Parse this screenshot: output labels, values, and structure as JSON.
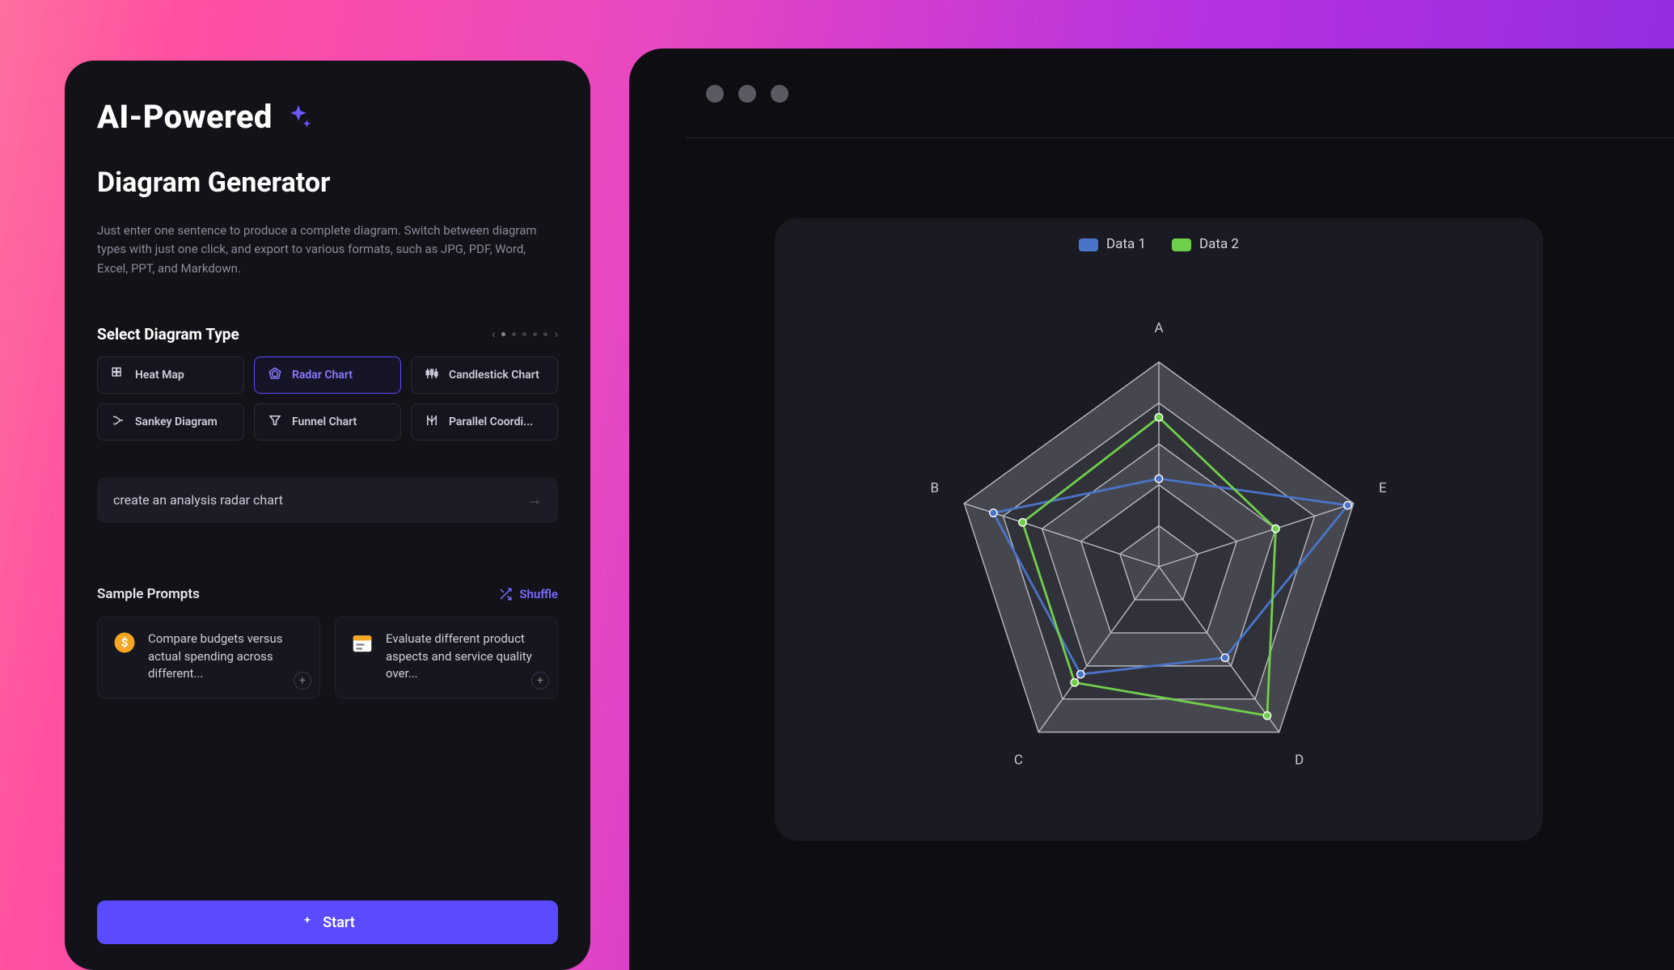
{
  "header": {
    "line1": "AI-Powered",
    "line2": "Diagram Generator",
    "description": "Just enter one sentence to produce a complete diagram. Switch between diagram types with just one click, and export to various formats, such as JPG, PDF, Word, Excel, PPT, and Markdown."
  },
  "select": {
    "title": "Select Diagram Type",
    "pager": {
      "pages": 5,
      "active": 0
    },
    "chips": [
      {
        "label": "Heat Map",
        "active": false
      },
      {
        "label": "Radar Chart",
        "active": true
      },
      {
        "label": "Candlestick Chart",
        "active": false
      },
      {
        "label": "Sankey Diagram",
        "active": false
      },
      {
        "label": "Funnel Chart",
        "active": false
      },
      {
        "label": "Parallel Coordi...",
        "active": false
      }
    ]
  },
  "prompt": {
    "value": "create an analysis radar chart"
  },
  "samples": {
    "title": "Sample Prompts",
    "shuffle": "Shuffle",
    "cards": [
      {
        "icon_bg": "#f5a623",
        "text": "Compare budgets versus actual spending across different..."
      },
      {
        "icon_bg": "#ffffff",
        "text": "Evaluate different product aspects and service quality over..."
      }
    ]
  },
  "start": {
    "label": "Start"
  },
  "chart": {
    "type": "radar",
    "panel_bg": "#1a1a22",
    "outer_bg": "#0d0d12",
    "ring_fill": "#46464f",
    "ring_fill_alt": "#31313a",
    "ring_stroke": "#b8b8c2",
    "ring_stroke_width": 1.5,
    "axis_label_color": "#c9c9d4",
    "axis_labels": [
      "A",
      "E",
      "D",
      "C",
      "B"
    ],
    "rings": 5,
    "max": 100,
    "legend": [
      {
        "name": "Data 1",
        "color": "#4a74c8"
      },
      {
        "name": "Data 2",
        "color": "#70cf4a"
      }
    ],
    "series": [
      {
        "name": "Data 1",
        "color": "#4a74c8",
        "line_width": 3,
        "marker_r": 5,
        "values": [
          43,
          97,
          55,
          65,
          85
        ]
      },
      {
        "name": "Data 2",
        "color": "#70cf4a",
        "line_width": 3,
        "marker_r": 5,
        "values": [
          73,
          60,
          90,
          70,
          70
        ]
      }
    ]
  },
  "accent": "#5a4bff"
}
